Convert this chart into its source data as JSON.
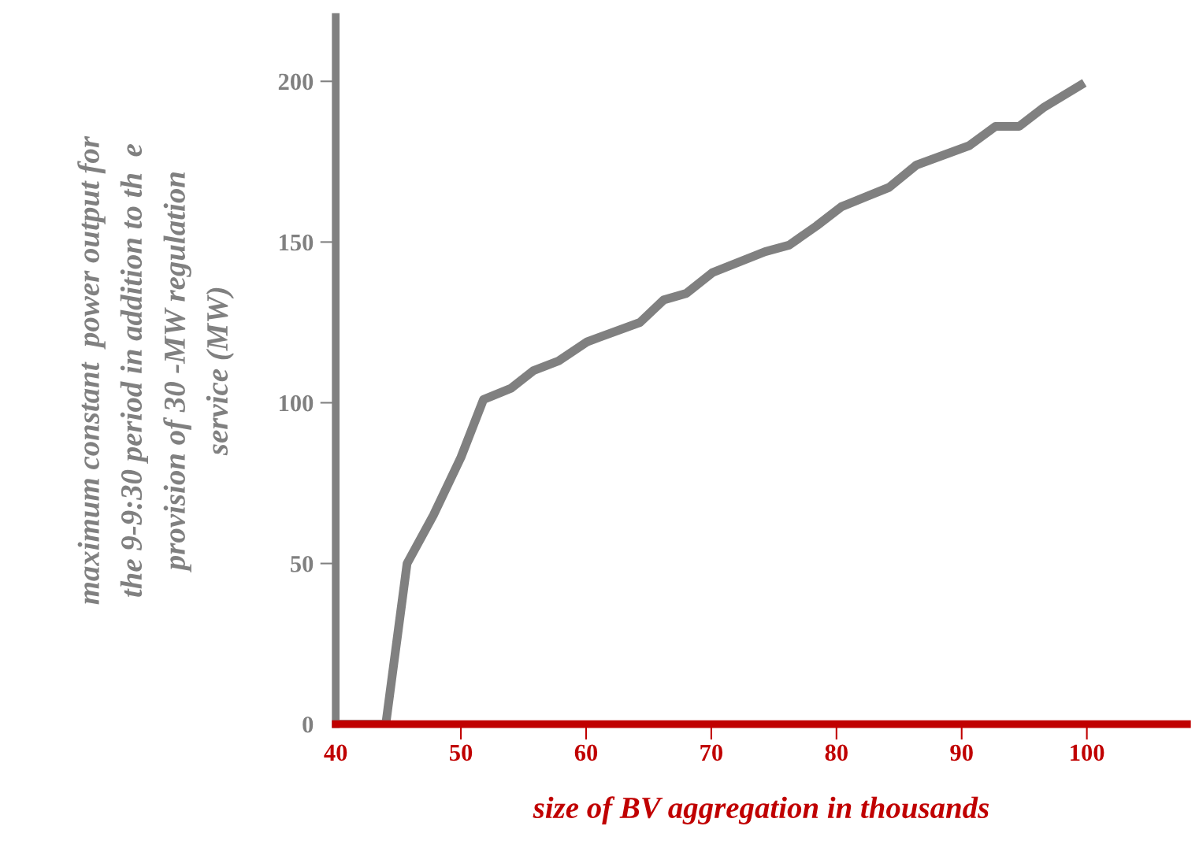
{
  "chart_data": {
    "type": "line",
    "xlabel": "size of BV aggregation in thousands",
    "ylabel": "maximum constant  power output for\nthe 9-9:30 period in addition to th  e\nprovision of 30 -MW regulation\nservice (MW)",
    "x": [
      40,
      44,
      45.7,
      47.8,
      50,
      51.8,
      54,
      55.8,
      57.8,
      60.1,
      64.3,
      66.2,
      68,
      70.1,
      74.3,
      76.2,
      78.4,
      80.4,
      84.2,
      86.4,
      90.6,
      92.7,
      94.6,
      96.6,
      99.8
    ],
    "series": [
      {
        "color": "#808080",
        "values": [
          0,
          0,
          50,
          65,
          83,
          101,
          104.5,
          110,
          113,
          119,
          125,
          132,
          134,
          140.5,
          147,
          149,
          155,
          161,
          167,
          174,
          180,
          186,
          186,
          192,
          199.5
        ]
      }
    ],
    "xlim": [
      40,
      108
    ],
    "ylim": [
      0,
      220
    ],
    "xticks": [
      40,
      50,
      60,
      70,
      80,
      90,
      100
    ],
    "yticks": [
      0,
      50,
      100,
      150,
      200
    ],
    "grid": false
  }
}
